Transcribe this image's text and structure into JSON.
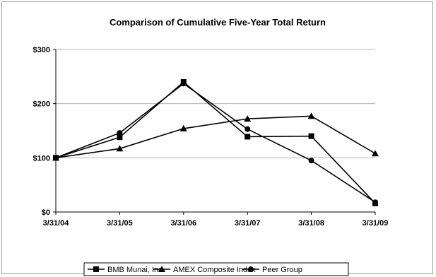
{
  "chart_data": {
    "type": "line",
    "title": "Comparison of Cumulative Five-Year Total Return",
    "xlabel": "",
    "ylabel": "",
    "categories": [
      "3/31/04",
      "3/31/05",
      "3/31/06",
      "3/31/07",
      "3/31/08",
      "3/31/09"
    ],
    "ylim": [
      0,
      300
    ],
    "yticks": [
      0,
      100,
      200,
      300
    ],
    "ytick_labels": [
      "$0",
      "$100",
      "$200",
      "$300"
    ],
    "grid": true,
    "legend_position": "bottom",
    "series": [
      {
        "name": "BMB Munai, Inc.",
        "marker": "square",
        "color": "#000000",
        "values": [
          100,
          138,
          240,
          139,
          140,
          16
        ]
      },
      {
        "name": "AMEX Composite Index",
        "marker": "triangle",
        "color": "#000000",
        "values": [
          100,
          117,
          154,
          172,
          177,
          108
        ]
      },
      {
        "name": "Peer Group",
        "marker": "circle",
        "color": "#000000",
        "values": [
          100,
          146,
          237,
          153,
          95,
          18
        ]
      }
    ]
  }
}
